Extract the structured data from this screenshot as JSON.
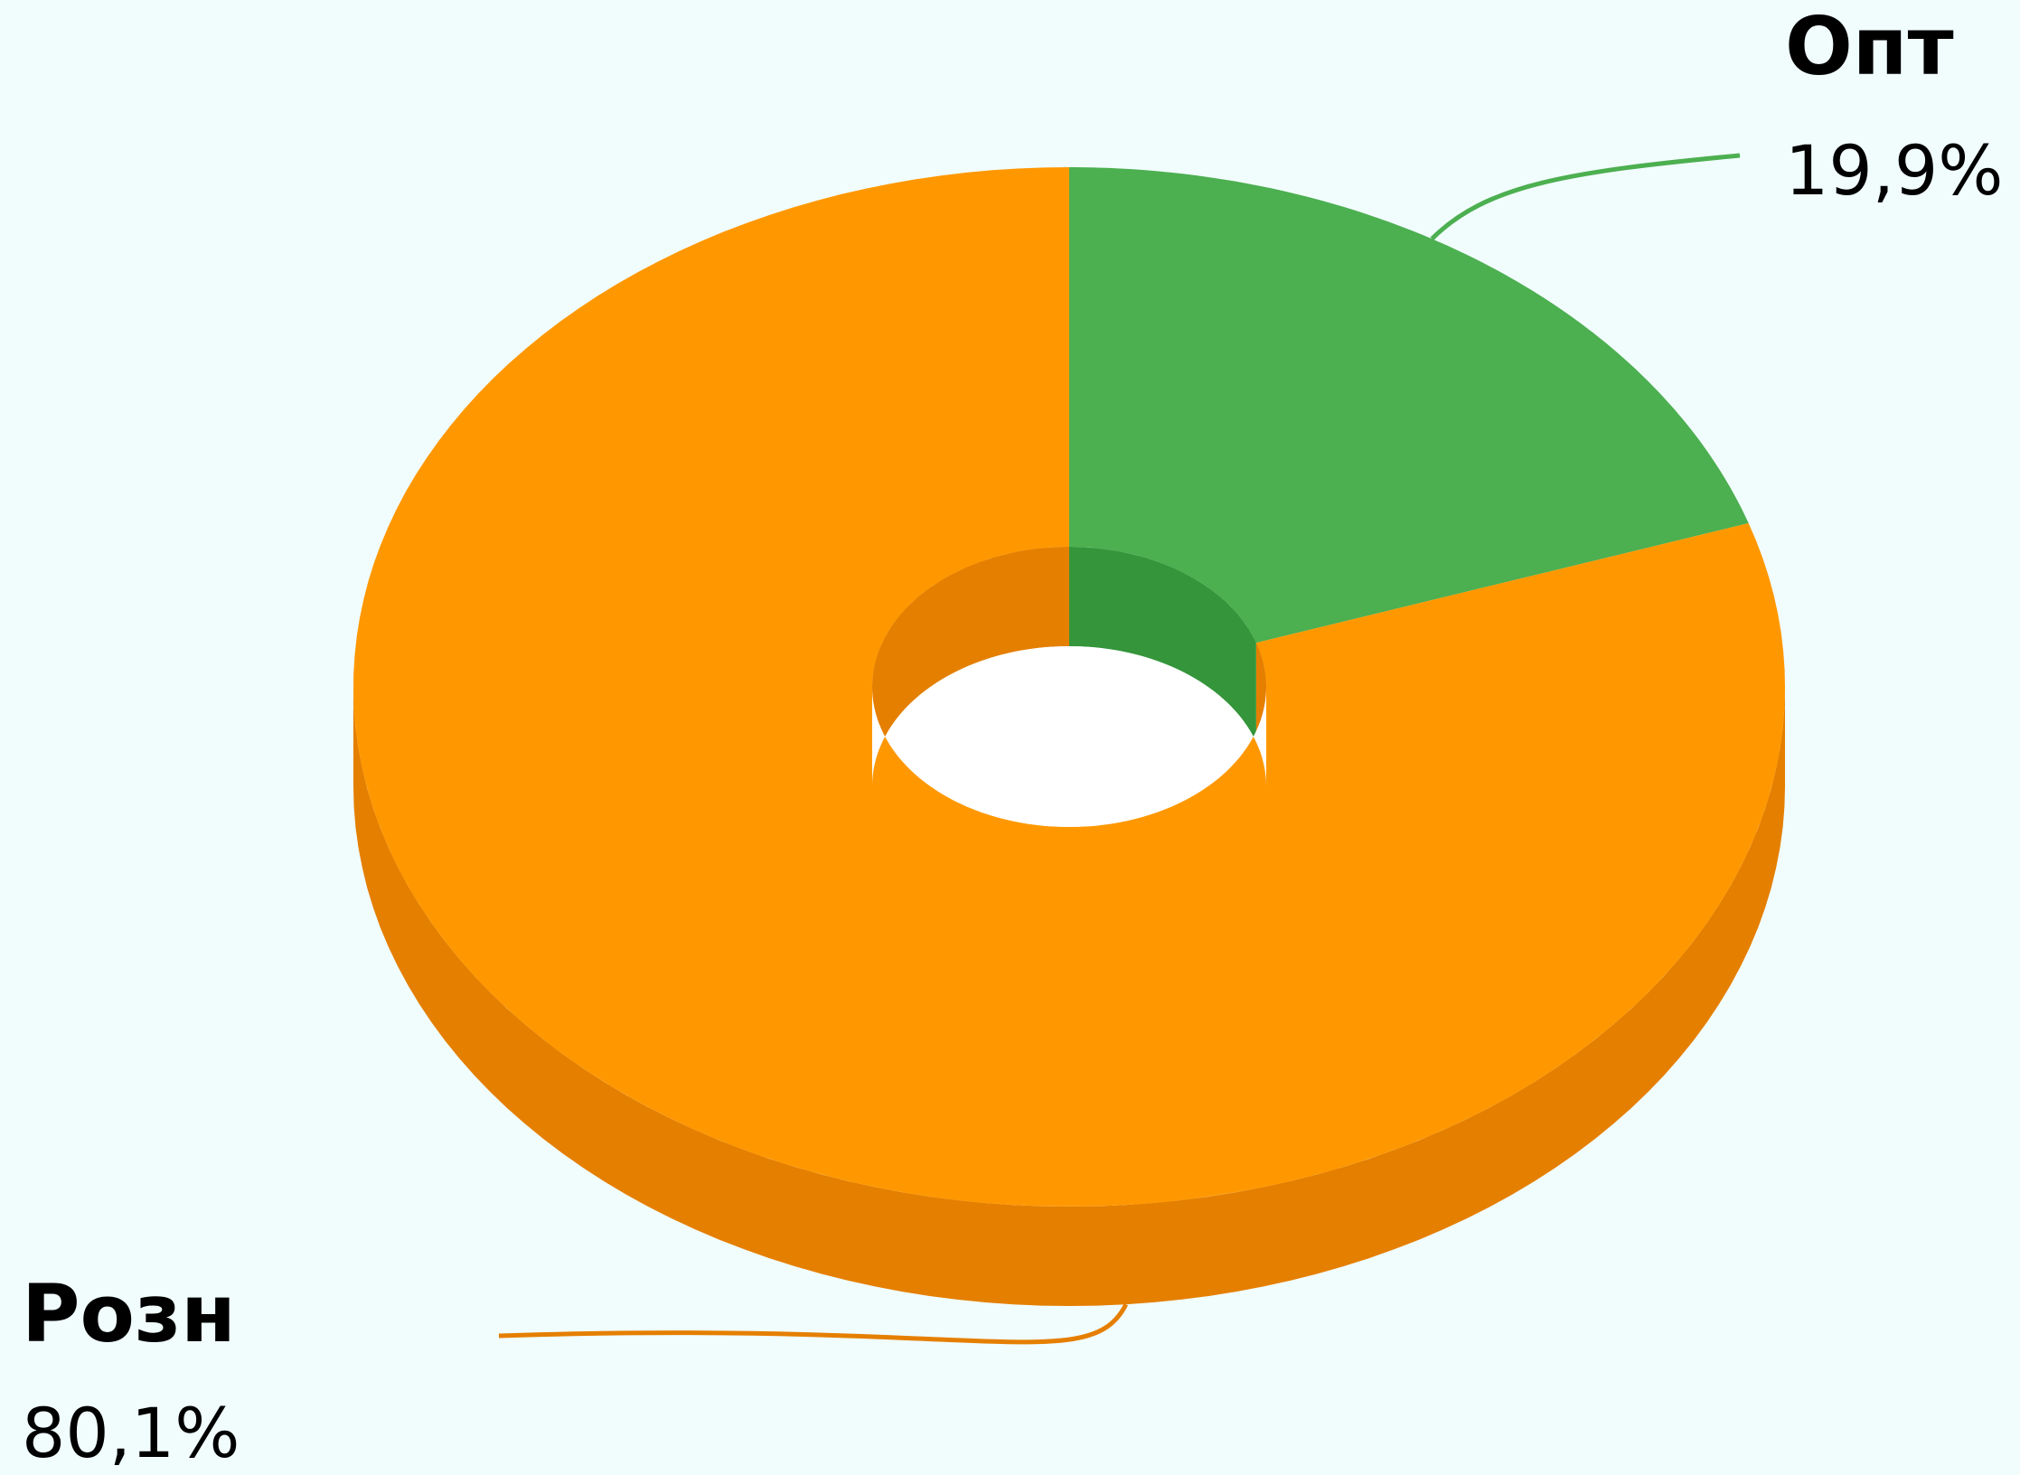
{
  "chart_data": {
    "type": "pie",
    "subtype": "donut-3d",
    "slices": [
      {
        "name": "Розн",
        "value": 80.1,
        "display": "80,1%",
        "color": "#ff9800",
        "side_color": "#e57f00"
      },
      {
        "name": "Опт",
        "value": 19.9,
        "display": "19,9%",
        "color": "#4caf50",
        "side_color": "#34953a"
      }
    ],
    "background": "#f1fcfd",
    "legend": "none",
    "data_labels": "outside-with-leader-lines"
  }
}
